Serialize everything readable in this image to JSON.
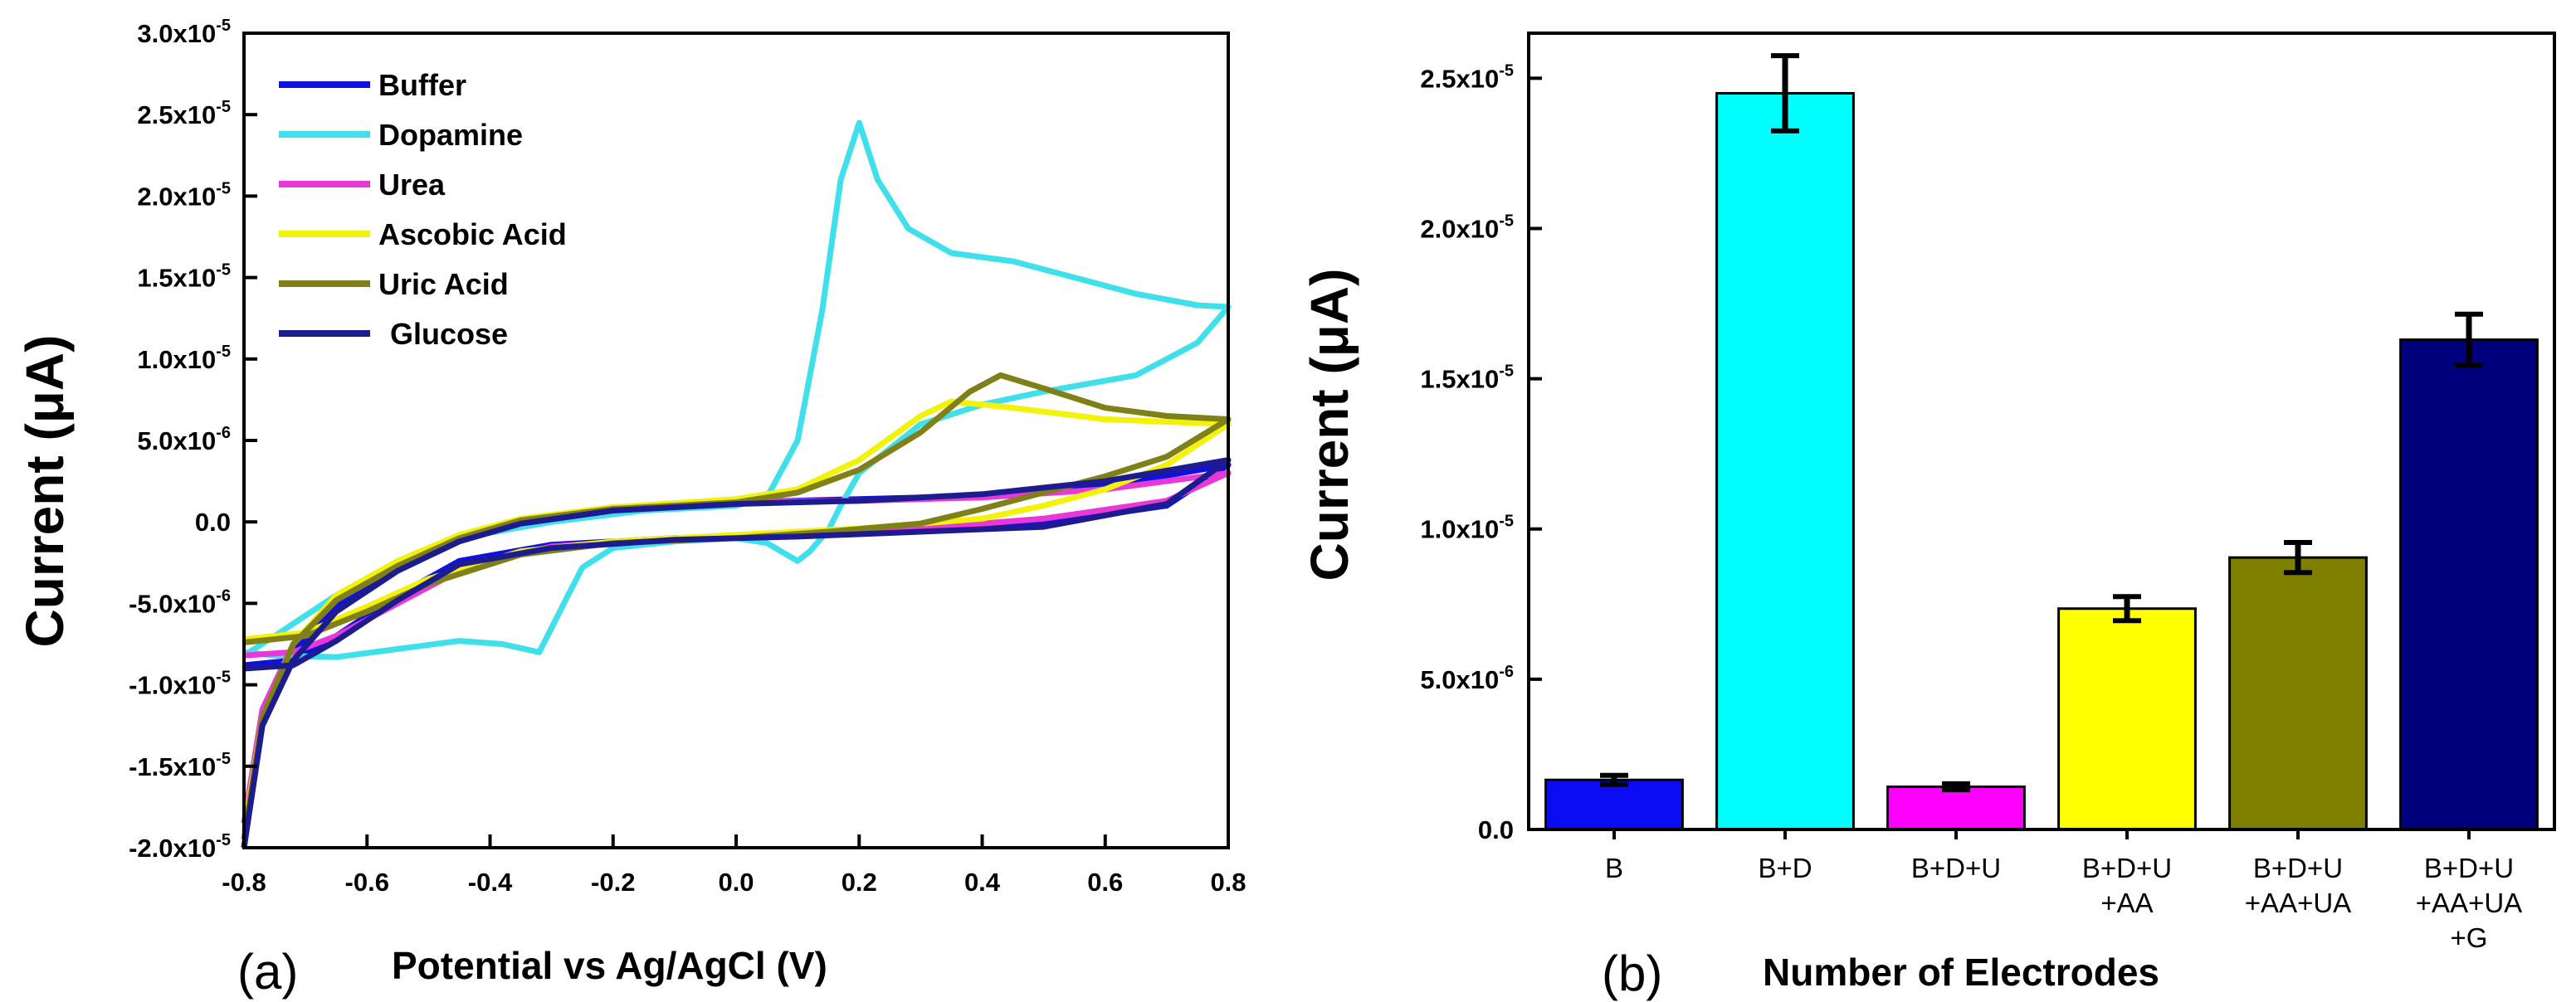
{
  "chart_data": [
    {
      "type": "line",
      "panel_label": "(a)",
      "xlabel": "Potential vs Ag/AgCl (V)",
      "ylabel": "Current (μA)",
      "xlim": [
        -0.8,
        0.8
      ],
      "ylim": [
        -2e-05,
        3e-05
      ],
      "xticks": [
        "-0.8",
        "-0.6",
        "-0.4",
        "-0.2",
        "0.0",
        "0.2",
        "0.4",
        "0.6",
        "0.8"
      ],
      "yticks": [
        {
          "mant": "3.0x10",
          "exp": "-5"
        },
        {
          "mant": "2.5x10",
          "exp": "-5"
        },
        {
          "mant": "2.0x10",
          "exp": "-5"
        },
        {
          "mant": "1.5x10",
          "exp": "-5"
        },
        {
          "mant": "1.0x10",
          "exp": "-5"
        },
        {
          "mant": "5.0x10",
          "exp": "-6"
        },
        {
          "mant": "0.0",
          "exp": ""
        },
        {
          "mant": "-5.0x10",
          "exp": "-6"
        },
        {
          "mant": "-1.0x10",
          "exp": "-5"
        },
        {
          "mant": "-1.5x10",
          "exp": "-5"
        },
        {
          "mant": "-2.0x10",
          "exp": "-5"
        }
      ],
      "legend_position": "top-left",
      "series": [
        {
          "name": "Buffer",
          "color": "#1010e0",
          "forward": [
            [
              -0.8,
              -2e-05
            ],
            [
              -0.77,
              -1.2e-05
            ],
            [
              -0.72,
              -8e-06
            ],
            [
              -0.65,
              -5.2e-06
            ],
            [
              -0.55,
              -2.8e-06
            ],
            [
              -0.45,
              -1e-06
            ],
            [
              -0.35,
              0.0
            ],
            [
              -0.2,
              8e-07
            ],
            [
              0.0,
              1.2e-06
            ],
            [
              0.2,
              1.4e-06
            ],
            [
              0.4,
              1.6e-06
            ],
            [
              0.6,
              2.2e-06
            ],
            [
              0.8,
              3.5e-06
            ]
          ],
          "reverse": [
            [
              0.8,
              3.5e-06
            ],
            [
              0.7,
              1e-06
            ],
            [
              0.5,
              -1e-07
            ],
            [
              0.3,
              -5e-07
            ],
            [
              0.1,
              -8e-07
            ],
            [
              -0.1,
              -1e-06
            ],
            [
              -0.3,
              -1.4e-06
            ],
            [
              -0.45,
              -2.4e-06
            ],
            [
              -0.55,
              -4.5e-06
            ],
            [
              -0.65,
              -7e-06
            ],
            [
              -0.72,
              -8.5e-06
            ],
            [
              -0.8,
              -8.8e-06
            ]
          ]
        },
        {
          "name": "Dopamine",
          "color": "#3fe0ec",
          "forward": [
            [
              -0.8,
              -8.2e-06
            ],
            [
              -0.75,
              -7e-06
            ],
            [
              -0.65,
              -4.5e-06
            ],
            [
              -0.55,
              -2.5e-06
            ],
            [
              -0.45,
              -1e-06
            ],
            [
              -0.3,
              0.0
            ],
            [
              -0.15,
              7e-07
            ],
            [
              0.0,
              1e-06
            ],
            [
              0.05,
              1.5e-06
            ],
            [
              0.1,
              5e-06
            ],
            [
              0.14,
              1.3e-05
            ],
            [
              0.17,
              2.1e-05
            ],
            [
              0.2,
              2.45e-05
            ],
            [
              0.23,
              2.1e-05
            ],
            [
              0.28,
              1.8e-05
            ],
            [
              0.35,
              1.65e-05
            ],
            [
              0.45,
              1.6e-05
            ],
            [
              0.55,
              1.5e-05
            ],
            [
              0.65,
              1.4e-05
            ],
            [
              0.75,
              1.33e-05
            ],
            [
              0.8,
              1.32e-05
            ]
          ],
          "reverse": [
            [
              0.8,
              1.32e-05
            ],
            [
              0.75,
              1.1e-05
            ],
            [
              0.65,
              9e-06
            ],
            [
              0.5,
              8e-06
            ],
            [
              0.4,
              7.2e-06
            ],
            [
              0.3,
              6e-06
            ],
            [
              0.2,
              3e-06
            ],
            [
              0.17,
              1e-06
            ],
            [
              0.15,
              -5e-07
            ],
            [
              0.12,
              -1.8e-06
            ],
            [
              0.1,
              -2.4e-06
            ],
            [
              0.05,
              -1.3e-06
            ],
            [
              0.0,
              -1e-06
            ],
            [
              -0.1,
              -1.2e-06
            ],
            [
              -0.2,
              -1.6e-06
            ],
            [
              -0.25,
              -2.8e-06
            ],
            [
              -0.28,
              -5e-06
            ],
            [
              -0.32,
              -8e-06
            ],
            [
              -0.38,
              -7.5e-06
            ],
            [
              -0.45,
              -7.3e-06
            ],
            [
              -0.55,
              -7.8e-06
            ],
            [
              -0.65,
              -8.3e-06
            ],
            [
              -0.75,
              -8.2e-06
            ],
            [
              -0.8,
              -8e-06
            ]
          ]
        },
        {
          "name": "Urea",
          "color": "#e838d8",
          "forward": [
            [
              -0.8,
              -1.85e-05
            ],
            [
              -0.77,
              -1.15e-05
            ],
            [
              -0.72,
              -7.5e-06
            ],
            [
              -0.65,
              -4.8e-06
            ],
            [
              -0.55,
              -2.6e-06
            ],
            [
              -0.45,
              -9e-07
            ],
            [
              -0.35,
              1e-07
            ],
            [
              -0.2,
              9e-07
            ],
            [
              0.0,
              1.25e-06
            ],
            [
              0.2,
              1.3e-06
            ],
            [
              0.4,
              1.5e-06
            ],
            [
              0.6,
              2e-06
            ],
            [
              0.8,
              3e-06
            ]
          ],
          "reverse": [
            [
              0.8,
              3e-06
            ],
            [
              0.7,
              1.3e-06
            ],
            [
              0.5,
              2e-07
            ],
            [
              0.3,
              -4e-07
            ],
            [
              0.1,
              -7.5e-07
            ],
            [
              -0.1,
              -1e-06
            ],
            [
              -0.3,
              -1.5e-06
            ],
            [
              -0.45,
              -3e-06
            ],
            [
              -0.55,
              -5e-06
            ],
            [
              -0.65,
              -7e-06
            ],
            [
              -0.72,
              -8e-06
            ],
            [
              -0.8,
              -8.2e-06
            ]
          ]
        },
        {
          "name": "Ascobic Acid",
          "color": "#f2f20a",
          "forward": [
            [
              -0.8,
              -1.9e-05
            ],
            [
              -0.77,
              -1.2e-05
            ],
            [
              -0.72,
              -7.5e-06
            ],
            [
              -0.65,
              -4.5e-06
            ],
            [
              -0.55,
              -2.4e-06
            ],
            [
              -0.45,
              -8e-07
            ],
            [
              -0.35,
              2e-07
            ],
            [
              -0.2,
              9e-07
            ],
            [
              0.0,
              1.4e-06
            ],
            [
              0.1,
              2e-06
            ],
            [
              0.2,
              3.8e-06
            ],
            [
              0.3,
              6.5e-06
            ],
            [
              0.35,
              7.4e-06
            ],
            [
              0.45,
              7e-06
            ],
            [
              0.6,
              6.3e-06
            ],
            [
              0.8,
              6e-06
            ]
          ],
          "reverse": [
            [
              0.8,
              6e-06
            ],
            [
              0.7,
              3.5e-06
            ],
            [
              0.6,
              2e-06
            ],
            [
              0.5,
              1e-06
            ],
            [
              0.4,
              2e-07
            ],
            [
              0.2,
              -4e-07
            ],
            [
              0.0,
              -8e-07
            ],
            [
              -0.2,
              -1.2e-06
            ],
            [
              -0.35,
              -1.8e-06
            ],
            [
              -0.5,
              -3.5e-06
            ],
            [
              -0.6,
              -5.2e-06
            ],
            [
              -0.7,
              -6.8e-06
            ],
            [
              -0.8,
              -7.2e-06
            ]
          ]
        },
        {
          "name": "Uric Acid",
          "color": "#808018",
          "forward": [
            [
              -0.8,
              -1.95e-05
            ],
            [
              -0.77,
              -1.2e-05
            ],
            [
              -0.72,
              -7.5e-06
            ],
            [
              -0.65,
              -4.8e-06
            ],
            [
              -0.55,
              -2.7e-06
            ],
            [
              -0.45,
              -1e-06
            ],
            [
              -0.35,
              1e-07
            ],
            [
              -0.2,
              8e-07
            ],
            [
              0.0,
              1.2e-06
            ],
            [
              0.1,
              1.8e-06
            ],
            [
              0.2,
              3.2e-06
            ],
            [
              0.3,
              5.5e-06
            ],
            [
              0.38,
              8e-06
            ],
            [
              0.43,
              9e-06
            ],
            [
              0.5,
              8.2e-06
            ],
            [
              0.6,
              7e-06
            ],
            [
              0.7,
              6.5e-06
            ],
            [
              0.8,
              6.3e-06
            ]
          ],
          "reverse": [
            [
              0.8,
              6.3e-06
            ],
            [
              0.7,
              4e-06
            ],
            [
              0.6,
              2.8e-06
            ],
            [
              0.5,
              1.8e-06
            ],
            [
              0.4,
              8e-07
            ],
            [
              0.3,
              -1e-07
            ],
            [
              0.15,
              -6e-07
            ],
            [
              0.0,
              -1e-06
            ],
            [
              -0.2,
              -1.3e-06
            ],
            [
              -0.35,
              -2e-06
            ],
            [
              -0.5,
              -3.8e-06
            ],
            [
              -0.6,
              -5.5e-06
            ],
            [
              -0.7,
              -7e-06
            ],
            [
              -0.8,
              -7.4e-06
            ]
          ]
        },
        {
          "name": "Glucose",
          "color": "#1c1c90",
          "forward": [
            [
              -0.8,
              -2e-05
            ],
            [
              -0.77,
              -1.25e-05
            ],
            [
              -0.72,
              -8.5e-06
            ],
            [
              -0.65,
              -5.5e-06
            ],
            [
              -0.55,
              -3e-06
            ],
            [
              -0.45,
              -1.2e-06
            ],
            [
              -0.35,
              -1e-07
            ],
            [
              -0.2,
              7e-07
            ],
            [
              0.0,
              1.1e-06
            ],
            [
              0.2,
              1.3e-06
            ],
            [
              0.4,
              1.7e-06
            ],
            [
              0.6,
              2.5e-06
            ],
            [
              0.8,
              3.8e-06
            ]
          ],
          "reverse": [
            [
              0.8,
              3.8e-06
            ],
            [
              0.7,
              1.1e-06
            ],
            [
              0.5,
              -3e-07
            ],
            [
              0.3,
              -6e-07
            ],
            [
              0.1,
              -9e-07
            ],
            [
              -0.1,
              -1.1e-06
            ],
            [
              -0.3,
              -1.6e-06
            ],
            [
              -0.45,
              -2.6e-06
            ],
            [
              -0.55,
              -4.8e-06
            ],
            [
              -0.65,
              -7.3e-06
            ],
            [
              -0.72,
              -8.8e-06
            ],
            [
              -0.8,
              -9e-06
            ]
          ]
        }
      ]
    },
    {
      "type": "bar",
      "panel_label": "(b)",
      "xlabel": "Number of Electrodes",
      "ylabel": "Current (μA)",
      "ylim": [
        0,
        2.65e-05
      ],
      "yticks": [
        {
          "value": 0,
          "mant": "0.0",
          "exp": ""
        },
        {
          "value": 5e-06,
          "mant": "5.0x10",
          "exp": "-6"
        },
        {
          "value": 1e-05,
          "mant": "1.0x10",
          "exp": "-5"
        },
        {
          "value": 1.5e-05,
          "mant": "1.5x10",
          "exp": "-5"
        },
        {
          "value": 2e-05,
          "mant": "2.0x10",
          "exp": "-5"
        },
        {
          "value": 2.5e-05,
          "mant": "2.5x10",
          "exp": "-5"
        }
      ],
      "categories": [
        [
          "B"
        ],
        [
          "B+D"
        ],
        [
          "B+D+U"
        ],
        [
          "B+D+U",
          "+AA"
        ],
        [
          "B+D+U",
          "+AA+UA"
        ],
        [
          "B+D+U",
          "+AA+UA",
          "+G"
        ]
      ],
      "values": [
        1.65e-06,
        2.45e-05,
        1.42e-06,
        7.35e-06,
        9.05e-06,
        1.63e-05
      ],
      "errors": [
        1.5e-07,
        1.25e-06,
        1e-07,
        4e-07,
        5e-07,
        8.5e-07
      ],
      "colors": [
        "#0c0cf4",
        "#00ffff",
        "#ff00ff",
        "#ffff00",
        "#7f7f00",
        "#00007c"
      ]
    }
  ]
}
